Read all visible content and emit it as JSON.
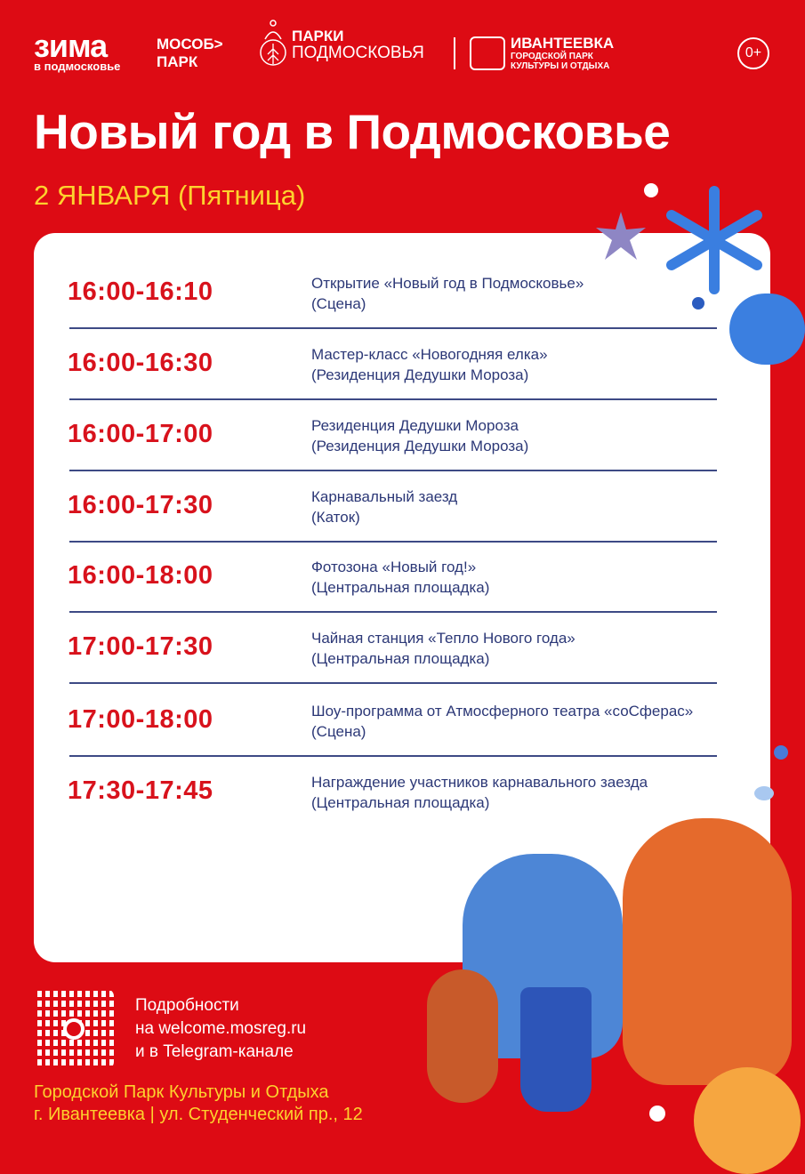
{
  "header": {
    "logo_zima": {
      "main": "зима",
      "sub": "в подмосковье"
    },
    "logo_mosobl": {
      "line1": "МОСОБ>",
      "line2": "ПАРК"
    },
    "logo_parks": {
      "line1": "ПАРКИ",
      "line2": "ПОДМОСКОВЬЯ"
    },
    "logo_ivanteevka": {
      "line1": "ИВАНТЕЕВКА",
      "line2": "ГОРОДСКОЙ ПАРК",
      "line3": "КУЛЬТУРЫ И ОТДЫХА"
    },
    "age_rating": "0+"
  },
  "title": "Новый год в Подмосковье",
  "date": "2 ЯНВАРЯ (Пятница)",
  "schedule": [
    {
      "time": "16:00-16:10",
      "event": "Открытие «Новый год в Подмосковье»",
      "place": "(Сцена)"
    },
    {
      "time": "16:00-16:30",
      "event": "Мастер-класс «Новогодняя елка»",
      "place": "(Резиденция Дедушки Мороза)"
    },
    {
      "time": "16:00-17:00",
      "event": "Резиденция Дедушки Мороза",
      "place": "(Резиденция Дедушки Мороза)"
    },
    {
      "time": "16:00-17:30",
      "event": "Карнавальный заезд",
      "place": "(Каток)"
    },
    {
      "time": "16:00-18:00",
      "event": "Фотозона «Новый год!»",
      "place": "(Центральная площадка)"
    },
    {
      "time": "17:00-17:30",
      "event": "Чайная станция «Тепло Нового года»",
      "place": "(Центральная площадка)"
    },
    {
      "time": "17:00-18:00",
      "event": "Шоу-программа от Атмосферного театра «соСферас»",
      "place": "(Сцена)"
    },
    {
      "time": "17:30-17:45",
      "event": "Награждение участников карнавального заезда",
      "place": "(Центральная площадка)"
    }
  ],
  "footer": {
    "info_line1": "Подробности",
    "info_line2": "на welcome.mosreg.ru",
    "info_line3": "и в Telegram-канале",
    "address_line1": "Городской Парк Культуры и Отдыха",
    "address_line2": "г. Ивантеевка | ул. Студенческий пр., 12"
  },
  "colors": {
    "background": "#dd0b14",
    "time": "#d8121c",
    "event_text": "#2c3877",
    "date": "#fdd22e"
  }
}
